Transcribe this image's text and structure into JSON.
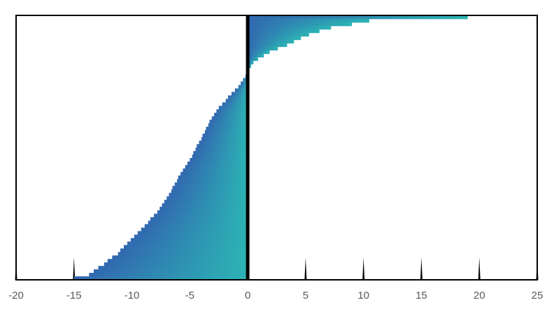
{
  "chart_data": {
    "type": "bar",
    "orientation": "horizontal",
    "values": [
      19,
      10.5,
      9,
      7.2,
      6.2,
      5.3,
      4.6,
      4.0,
      3.4,
      2.6,
      1.9,
      1.4,
      0.9,
      0.5,
      0.3,
      0.15,
      0.05,
      -0.2,
      -0.4,
      -0.6,
      -0.8,
      -1.1,
      -1.4,
      -1.7,
      -1.9,
      -2.2,
      -2.5,
      -2.7,
      -2.9,
      -3.1,
      -3.3,
      -3.4,
      -3.6,
      -3.7,
      -3.9,
      -4.0,
      -4.2,
      -4.4,
      -4.5,
      -4.7,
      -4.8,
      -5.0,
      -5.2,
      -5.4,
      -5.6,
      -5.8,
      -6.0,
      -6.1,
      -6.3,
      -6.5,
      -6.6,
      -6.8,
      -7.0,
      -7.2,
      -7.4,
      -7.6,
      -7.8,
      -8.1,
      -8.4,
      -8.6,
      -8.9,
      -9.2,
      -9.5,
      -9.8,
      -10.1,
      -10.4,
      -10.7,
      -11.0,
      -11.2,
      -11.7,
      -12.1,
      -12.4,
      -12.9,
      -13.3,
      -13.7,
      -15.0
    ],
    "gradient": [
      "#3168b0",
      "#2cb4b4"
    ],
    "xlim": [
      -20,
      25
    ],
    "xticks": [
      -20,
      -15,
      -10,
      -5,
      0,
      5,
      10,
      15,
      20,
      25
    ]
  }
}
